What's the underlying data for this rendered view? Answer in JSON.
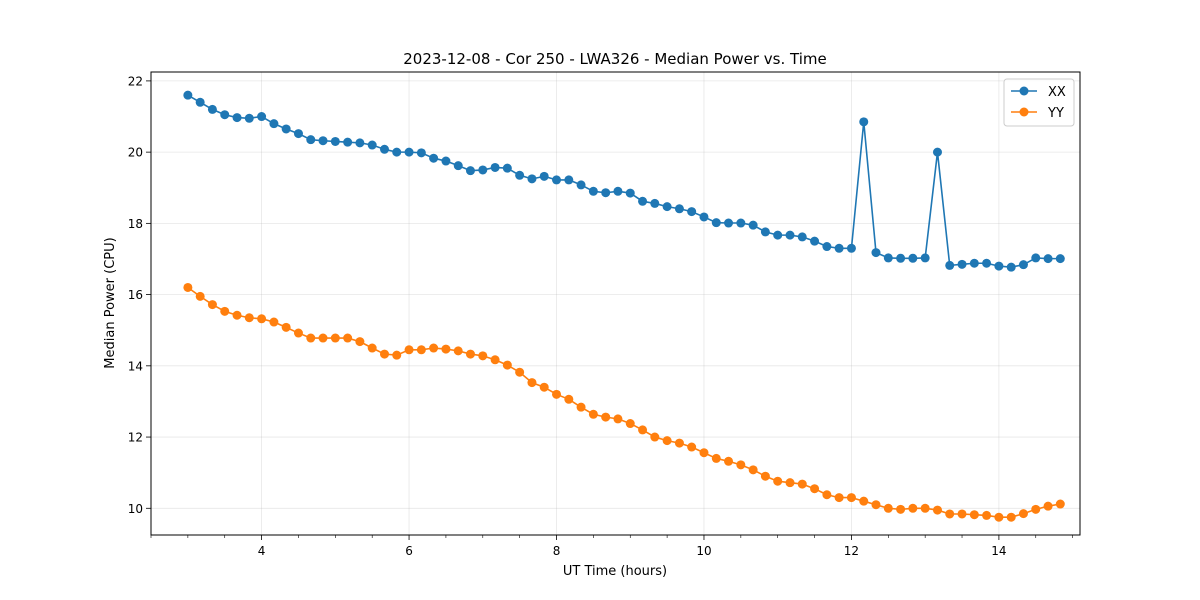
{
  "chart_data": {
    "type": "line",
    "title": "2023-12-08 - Cor 250 - LWA326 - Median Power vs. Time",
    "xlabel": "UT Time (hours)",
    "ylabel": "Median Power (CPU)",
    "xlim": [
      2.5,
      15.1
    ],
    "ylim": [
      9.25,
      22.25
    ],
    "x_ticks": [
      4,
      6,
      8,
      10,
      12,
      14
    ],
    "x_tick_labels": [
      "4",
      "6",
      "8",
      "10",
      "12",
      "14"
    ],
    "y_ticks": [
      10,
      12,
      14,
      16,
      18,
      20,
      22
    ],
    "y_tick_labels": [
      "10",
      "12",
      "14",
      "16",
      "18",
      "20",
      "22"
    ],
    "grid": true,
    "legend_position": "top-right",
    "x": [
      3.0,
      3.167,
      3.333,
      3.5,
      3.667,
      3.833,
      4.0,
      4.167,
      4.333,
      4.5,
      4.667,
      4.833,
      5.0,
      5.167,
      5.333,
      5.5,
      5.667,
      5.833,
      6.0,
      6.167,
      6.333,
      6.5,
      6.667,
      6.833,
      7.0,
      7.167,
      7.333,
      7.5,
      7.667,
      7.833,
      8.0,
      8.167,
      8.333,
      8.5,
      8.667,
      8.833,
      9.0,
      9.167,
      9.333,
      9.5,
      9.667,
      9.833,
      10.0,
      10.167,
      10.333,
      10.5,
      10.667,
      10.833,
      11.0,
      11.167,
      11.333,
      11.5,
      11.667,
      11.833,
      12.0,
      12.167,
      12.333,
      12.5,
      12.667,
      12.833,
      13.0,
      13.167,
      13.333,
      13.5,
      13.667,
      13.833,
      14.0,
      14.167,
      14.333,
      14.5,
      14.667,
      14.833
    ],
    "series": [
      {
        "name": "XX",
        "color": "#1f77b4",
        "values": [
          21.6,
          21.4,
          21.2,
          21.05,
          20.97,
          20.95,
          21.0,
          20.8,
          20.65,
          20.52,
          20.35,
          20.32,
          20.3,
          20.28,
          20.26,
          20.2,
          20.08,
          20.0,
          20.0,
          19.98,
          19.83,
          19.75,
          19.62,
          19.48,
          19.5,
          19.57,
          19.55,
          19.35,
          19.25,
          19.32,
          19.22,
          19.22,
          19.08,
          18.9,
          18.86,
          18.9,
          18.85,
          18.62,
          18.56,
          18.47,
          18.41,
          18.33,
          18.18,
          18.02,
          18.01,
          18.01,
          17.95,
          17.76,
          17.67,
          17.67,
          17.62,
          17.5,
          17.35,
          17.3,
          17.3,
          20.85,
          17.18,
          17.03,
          17.02,
          17.02,
          17.03,
          20.0,
          16.82,
          16.85,
          16.88,
          16.88,
          16.8,
          16.77,
          16.84,
          17.03,
          17.01,
          17.01
        ]
      },
      {
        "name": "YY",
        "color": "#ff7f0e",
        "values": [
          16.2,
          15.95,
          15.72,
          15.53,
          15.42,
          15.35,
          15.32,
          15.23,
          15.08,
          14.92,
          14.78,
          14.78,
          14.78,
          14.78,
          14.68,
          14.5,
          14.33,
          14.3,
          14.45,
          14.45,
          14.5,
          14.47,
          14.42,
          14.33,
          14.28,
          14.17,
          14.02,
          13.82,
          13.53,
          13.4,
          13.2,
          13.06,
          12.84,
          12.64,
          12.56,
          12.51,
          12.38,
          12.2,
          12.0,
          11.9,
          11.83,
          11.72,
          11.56,
          11.4,
          11.32,
          11.22,
          11.08,
          10.9,
          10.76,
          10.72,
          10.68,
          10.55,
          10.38,
          10.3,
          10.3,
          10.2,
          10.1,
          10.0,
          9.97,
          10.0,
          10.0,
          9.95,
          9.84,
          9.84,
          9.82,
          9.8,
          9.75,
          9.75,
          9.85,
          9.97,
          10.06,
          10.12
        ]
      }
    ]
  }
}
